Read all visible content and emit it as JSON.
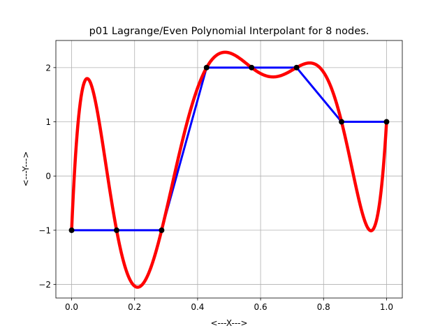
{
  "chart_data": {
    "type": "line",
    "title": "p01 Lagrange/Even Polynomial Interpolant for 8 nodes.",
    "xlabel": "<---X--->",
    "ylabel": "<---Y--->",
    "xlim": [
      -0.05,
      1.05
    ],
    "ylim": [
      -2.25,
      2.5
    ],
    "xticks": [
      0.0,
      0.2,
      0.4,
      0.6,
      0.8,
      1.0
    ],
    "xtick_labels": [
      "0.0",
      "0.2",
      "0.4",
      "0.6",
      "0.8",
      "1.0"
    ],
    "yticks": [
      -2,
      -1,
      0,
      1,
      2
    ],
    "ytick_labels": [
      "−2",
      "−1",
      "0",
      "1",
      "2"
    ],
    "grid": true,
    "legend": "none",
    "series": [
      {
        "style": "data-polyline",
        "color": "#0000ff",
        "x": [
          0.0,
          0.142857,
          0.285714,
          0.428571,
          0.571429,
          0.714286,
          0.857143,
          1.0
        ],
        "y": [
          -1,
          -1,
          -1,
          2,
          2,
          2,
          1,
          1
        ]
      },
      {
        "style": "interpolant",
        "color": "#ff0000",
        "x": [
          0.0,
          0.142857,
          0.285714,
          0.428571,
          0.571429,
          0.714286,
          0.857143,
          1.0
        ],
        "y": [
          -1,
          -1,
          -1,
          2,
          2,
          2,
          1,
          1
        ]
      },
      {
        "style": "nodes",
        "color": "#000000",
        "x": [
          0.0,
          0.142857,
          0.285714,
          0.428571,
          0.571429,
          0.714286,
          0.857143,
          1.0
        ],
        "y": [
          -1,
          -1,
          -1,
          2,
          2,
          2,
          1,
          1
        ]
      }
    ]
  }
}
